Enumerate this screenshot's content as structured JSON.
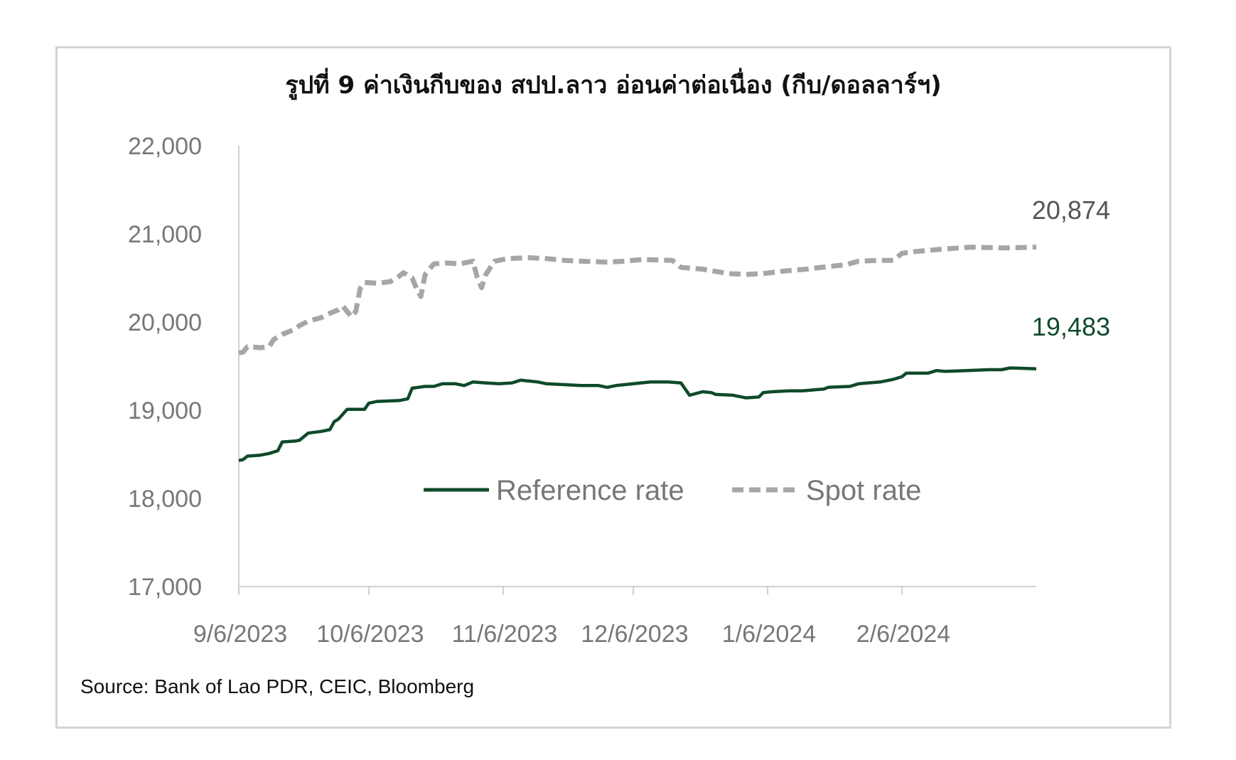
{
  "chart_data": {
    "type": "line",
    "title": "รูปที่ 9 ค่าเงินกีบของ สปป.ลาว อ่อนค่าต่อเนื่อง (กีบ/ดอลลาร์ฯ)",
    "source": "Source: Bank of Lao PDR, CEIC, Bloomberg",
    "xlabel": "",
    "ylabel": "",
    "ylim": [
      17000,
      22000
    ],
    "yticks": [
      "22,000",
      "21,000",
      "20,000",
      "19,000",
      "18,000",
      "17,000"
    ],
    "yticks_values": [
      22000,
      21000,
      20000,
      19000,
      18000,
      17000
    ],
    "xticks": [
      "9/6/2023",
      "10/6/2023",
      "11/6/2023",
      "12/6/2023",
      "1/6/2024",
      "2/6/2024"
    ],
    "x_dates": [
      "2023-09-06",
      "2023-10-06",
      "2023-11-06",
      "2023-12-06",
      "2024-01-06",
      "2024-02-06"
    ],
    "xlim": [
      "2023-09-06",
      "2024-03-08"
    ],
    "grid": false,
    "legend": "center",
    "series": [
      {
        "name": "Reference rate",
        "color": "#0f4a2a",
        "style": "solid",
        "end_label": "19,483",
        "points": [
          [
            "2023-09-06",
            18430
          ],
          [
            "2023-09-07",
            18440
          ],
          [
            "2023-09-08",
            18480
          ],
          [
            "2023-09-11",
            18490
          ],
          [
            "2023-09-13",
            18510
          ],
          [
            "2023-09-15",
            18540
          ],
          [
            "2023-09-16",
            18640
          ],
          [
            "2023-09-19",
            18650
          ],
          [
            "2023-09-20",
            18660
          ],
          [
            "2023-09-22",
            18740
          ],
          [
            "2023-09-25",
            18760
          ],
          [
            "2023-09-27",
            18780
          ],
          [
            "2023-09-28",
            18870
          ],
          [
            "2023-09-29",
            18900
          ],
          [
            "2023-10-01",
            19010
          ],
          [
            "2023-10-05",
            19010
          ],
          [
            "2023-10-06",
            19080
          ],
          [
            "2023-10-08",
            19100
          ],
          [
            "2023-10-13",
            19110
          ],
          [
            "2023-10-15",
            19130
          ],
          [
            "2023-10-16",
            19250
          ],
          [
            "2023-10-19",
            19270
          ],
          [
            "2023-10-21",
            19270
          ],
          [
            "2023-10-23",
            19300
          ],
          [
            "2023-10-26",
            19300
          ],
          [
            "2023-10-28",
            19280
          ],
          [
            "2023-10-30",
            19320
          ],
          [
            "2023-11-02",
            19310
          ],
          [
            "2023-11-05",
            19300
          ],
          [
            "2023-11-08",
            19310
          ],
          [
            "2023-11-10",
            19340
          ],
          [
            "2023-11-14",
            19320
          ],
          [
            "2023-11-16",
            19300
          ],
          [
            "2023-11-20",
            19290
          ],
          [
            "2023-11-24",
            19280
          ],
          [
            "2023-11-28",
            19280
          ],
          [
            "2023-11-30",
            19260
          ],
          [
            "2023-12-02",
            19280
          ],
          [
            "2023-12-06",
            19300
          ],
          [
            "2023-12-10",
            19320
          ],
          [
            "2023-12-14",
            19320
          ],
          [
            "2023-12-17",
            19310
          ],
          [
            "2023-12-19",
            19170
          ],
          [
            "2023-12-22",
            19210
          ],
          [
            "2023-12-24",
            19200
          ],
          [
            "2023-12-25",
            19180
          ],
          [
            "2023-12-29",
            19170
          ],
          [
            "2024-01-01",
            19140
          ],
          [
            "2024-01-04",
            19150
          ],
          [
            "2024-01-05",
            19200
          ],
          [
            "2024-01-07",
            19210
          ],
          [
            "2024-01-11",
            19220
          ],
          [
            "2024-01-14",
            19220
          ],
          [
            "2024-01-19",
            19240
          ],
          [
            "2024-01-20",
            19260
          ],
          [
            "2024-01-25",
            19270
          ],
          [
            "2024-01-27",
            19300
          ],
          [
            "2024-02-01",
            19320
          ],
          [
            "2024-02-04",
            19350
          ],
          [
            "2024-02-06",
            19380
          ],
          [
            "2024-02-07",
            19420
          ],
          [
            "2024-02-12",
            19420
          ],
          [
            "2024-02-14",
            19450
          ],
          [
            "2024-02-16",
            19440
          ],
          [
            "2024-02-21",
            19450
          ],
          [
            "2024-02-26",
            19460
          ],
          [
            "2024-02-29",
            19460
          ],
          [
            "2024-03-02",
            19480
          ],
          [
            "2024-03-08",
            19470
          ]
        ]
      },
      {
        "name": "Spot rate",
        "color": "#a6a6a6",
        "style": "dashed",
        "end_label": "20,874",
        "points": [
          [
            "2023-09-06",
            19650
          ],
          [
            "2023-09-07",
            19660
          ],
          [
            "2023-09-08",
            19720
          ],
          [
            "2023-09-11",
            19710
          ],
          [
            "2023-09-13",
            19720
          ],
          [
            "2023-09-14",
            19800
          ],
          [
            "2023-09-16",
            19860
          ],
          [
            "2023-09-19",
            19920
          ],
          [
            "2023-09-20",
            19960
          ],
          [
            "2023-09-22",
            20010
          ],
          [
            "2023-09-25",
            20050
          ],
          [
            "2023-09-27",
            20100
          ],
          [
            "2023-09-29",
            20140
          ],
          [
            "2023-09-30",
            20180
          ],
          [
            "2023-10-02",
            20060
          ],
          [
            "2023-10-03",
            20120
          ],
          [
            "2023-10-04",
            20380
          ],
          [
            "2023-10-05",
            20450
          ],
          [
            "2023-10-08",
            20440
          ],
          [
            "2023-10-11",
            20460
          ],
          [
            "2023-10-13",
            20520
          ],
          [
            "2023-10-14",
            20560
          ],
          [
            "2023-10-16",
            20500
          ],
          [
            "2023-10-17",
            20380
          ],
          [
            "2023-10-18",
            20290
          ],
          [
            "2023-10-19",
            20540
          ],
          [
            "2023-10-21",
            20660
          ],
          [
            "2023-10-24",
            20670
          ],
          [
            "2023-10-27",
            20660
          ],
          [
            "2023-10-30",
            20690
          ],
          [
            "2023-10-31",
            20510
          ],
          [
            "2023-11-01",
            20390
          ],
          [
            "2023-11-02",
            20540
          ],
          [
            "2023-11-04",
            20690
          ],
          [
            "2023-11-07",
            20720
          ],
          [
            "2023-11-12",
            20730
          ],
          [
            "2023-11-16",
            20720
          ],
          [
            "2023-11-20",
            20700
          ],
          [
            "2023-11-24",
            20690
          ],
          [
            "2023-11-30",
            20680
          ],
          [
            "2023-12-04",
            20690
          ],
          [
            "2023-12-08",
            20710
          ],
          [
            "2023-12-15",
            20700
          ],
          [
            "2023-12-17",
            20620
          ],
          [
            "2023-12-22",
            20600
          ],
          [
            "2023-12-28",
            20550
          ],
          [
            "2024-01-01",
            20540
          ],
          [
            "2024-01-05",
            20550
          ],
          [
            "2024-01-10",
            20580
          ],
          [
            "2024-01-15",
            20600
          ],
          [
            "2024-01-20",
            20630
          ],
          [
            "2024-01-24",
            20650
          ],
          [
            "2024-01-27",
            20690
          ],
          [
            "2024-02-01",
            20700
          ],
          [
            "2024-02-04",
            20700
          ],
          [
            "2024-02-06",
            20780
          ],
          [
            "2024-02-09",
            20800
          ],
          [
            "2024-02-16",
            20830
          ],
          [
            "2024-02-22",
            20850
          ],
          [
            "2024-03-01",
            20840
          ],
          [
            "2024-03-08",
            20850
          ]
        ]
      }
    ]
  }
}
